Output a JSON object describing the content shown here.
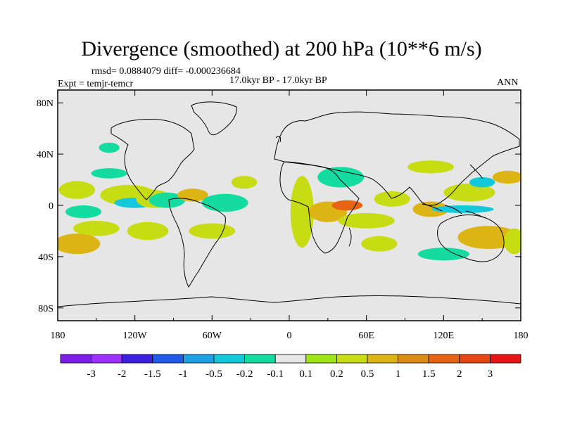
{
  "header": {
    "title": "Divergence (smoothed) at 200 hPa (10**6 m/s)",
    "stats": "rmsd= 0.0884079 diff= -0.000236684",
    "expt": "Expt = temjr-temcr",
    "period": "17.0kyr BP - 17.0kyr BP",
    "season": "ANN"
  },
  "chart_data": {
    "type": "heatmap",
    "title": "Divergence (smoothed) at 200 hPa (10**6 m/s)",
    "projection": "cylindrical equidistant",
    "xlim": [
      -180,
      180
    ],
    "ylim": [
      -90,
      90
    ],
    "x_ticks": [
      {
        "value": -180,
        "label": "180"
      },
      {
        "value": -120,
        "label": "120W"
      },
      {
        "value": -60,
        "label": "60W"
      },
      {
        "value": 0,
        "label": "0"
      },
      {
        "value": 60,
        "label": "60E"
      },
      {
        "value": 120,
        "label": "120E"
      },
      {
        "value": 180,
        "label": "180"
      }
    ],
    "y_ticks": [
      {
        "value": 80,
        "label": "80N"
      },
      {
        "value": 40,
        "label": "40N"
      },
      {
        "value": 0,
        "label": "0"
      },
      {
        "value": -40,
        "label": "40S"
      },
      {
        "value": -80,
        "label": "80S"
      }
    ],
    "colorbar": {
      "colors": [
        "#9b30ff",
        "#3c1fe0",
        "#1e5ae6",
        "#1ea0e6",
        "#14c8dc",
        "#14dca0",
        "#e6e6e6",
        "#a0e614",
        "#c8dc14",
        "#dcb414",
        "#dc8c14",
        "#e66414",
        "#e64614",
        "#e61414"
      ],
      "labels": [
        "-3",
        "-2",
        "-1.5",
        "-1",
        "-0.5",
        "-0.2",
        "-0.1",
        "0.1",
        "0.2",
        "0.5",
        "1",
        "1.5",
        "2",
        "3"
      ]
    },
    "anomalies": [
      {
        "lon": -165,
        "lat": 12,
        "rlon": 14,
        "rlat": 7,
        "level": 0.2
      },
      {
        "lon": -160,
        "lat": -5,
        "rlon": 14,
        "rlat": 5,
        "level": -0.2
      },
      {
        "lon": -150,
        "lat": -18,
        "rlon": 18,
        "rlat": 6,
        "level": 0.2
      },
      {
        "lon": -165,
        "lat": -30,
        "rlon": 18,
        "rlat": 8,
        "level": 0.5
      },
      {
        "lon": -140,
        "lat": 25,
        "rlon": 14,
        "rlat": 4,
        "level": -0.2
      },
      {
        "lon": -125,
        "lat": 8,
        "rlon": 22,
        "rlat": 8,
        "level": 0.2
      },
      {
        "lon": -120,
        "lat": 2,
        "rlon": 16,
        "rlat": 4,
        "level": -0.5
      },
      {
        "lon": -110,
        "lat": -20,
        "rlon": 16,
        "rlat": 7,
        "level": 0.2
      },
      {
        "lon": -105,
        "lat": 5,
        "rlon": 14,
        "rlat": 7,
        "level": 0.2
      },
      {
        "lon": -95,
        "lat": 4,
        "rlon": 14,
        "rlat": 6,
        "level": -0.2
      },
      {
        "lon": -75,
        "lat": 8,
        "rlon": 12,
        "rlat": 5,
        "level": 0.5
      },
      {
        "lon": -50,
        "lat": 2,
        "rlon": 18,
        "rlat": 7,
        "level": -0.2
      },
      {
        "lon": -35,
        "lat": 18,
        "rlon": 10,
        "rlat": 5,
        "level": 0.2
      },
      {
        "lon": -60,
        "lat": -20,
        "rlon": 18,
        "rlat": 6,
        "level": 0.2
      },
      {
        "lon": -140,
        "lat": 45,
        "rlon": 8,
        "rlat": 4,
        "level": -0.2
      },
      {
        "lon": 10,
        "lat": -5,
        "rlon": 9,
        "rlat": 28,
        "level": 0.2
      },
      {
        "lon": 40,
        "lat": 22,
        "rlon": 18,
        "rlat": 8,
        "level": -0.2
      },
      {
        "lon": 30,
        "lat": -5,
        "rlon": 15,
        "rlat": 8,
        "level": 0.5
      },
      {
        "lon": 45,
        "lat": 0,
        "rlon": 12,
        "rlat": 4,
        "level": 1.5
      },
      {
        "lon": 60,
        "lat": -12,
        "rlon": 22,
        "rlat": 6,
        "level": 0.2
      },
      {
        "lon": 70,
        "lat": -30,
        "rlon": 14,
        "rlat": 6,
        "level": 0.2
      },
      {
        "lon": 80,
        "lat": 5,
        "rlon": 14,
        "rlat": 6,
        "level": 0.2
      },
      {
        "lon": 110,
        "lat": 30,
        "rlon": 18,
        "rlat": 5,
        "level": 0.2
      },
      {
        "lon": 110,
        "lat": -3,
        "rlon": 14,
        "rlat": 6,
        "level": 0.5
      },
      {
        "lon": 140,
        "lat": 10,
        "rlon": 20,
        "rlat": 7,
        "level": 0.2
      },
      {
        "lon": 150,
        "lat": 18,
        "rlon": 10,
        "rlat": 4,
        "level": -0.5
      },
      {
        "lon": 135,
        "lat": -3,
        "rlon": 24,
        "rlat": 3,
        "level": -0.5
      },
      {
        "lon": 155,
        "lat": -25,
        "rlon": 24,
        "rlat": 9,
        "level": 0.5
      },
      {
        "lon": 120,
        "lat": -38,
        "rlon": 20,
        "rlat": 5,
        "level": -0.2
      },
      {
        "lon": 170,
        "lat": 22,
        "rlon": 12,
        "rlat": 5,
        "level": 0.5
      },
      {
        "lon": 175,
        "lat": -28,
        "rlon": 8,
        "rlat": 10,
        "level": 0.2
      }
    ]
  }
}
